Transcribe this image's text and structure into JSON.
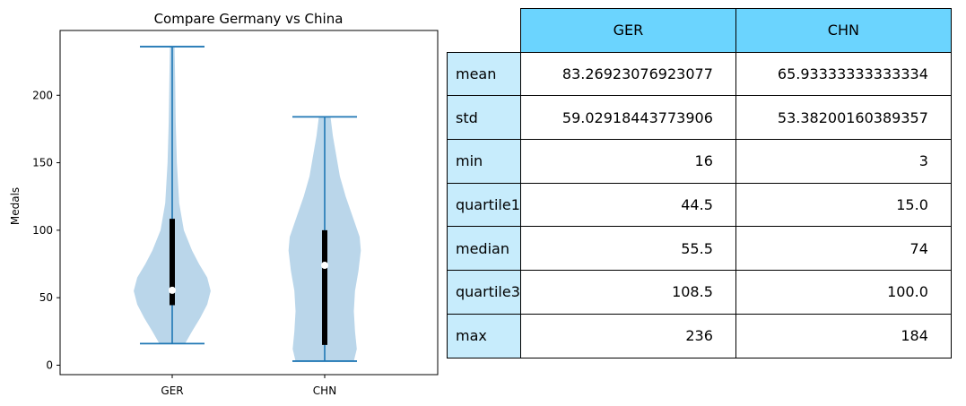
{
  "chart_data": {
    "type": "violin",
    "title": "Compare Germany vs China",
    "ylabel": "Medals",
    "xlabel": "",
    "ylim": [
      -7,
      248
    ],
    "yticks": [
      0,
      50,
      100,
      150,
      200
    ],
    "categories": [
      "GER",
      "CHN"
    ],
    "series": [
      {
        "name": "GER",
        "min": 16,
        "quartile1": 44.5,
        "median": 55.5,
        "quartile3": 108.5,
        "max": 236,
        "density": [
          [
            16,
            0.22
          ],
          [
            25,
            0.34
          ],
          [
            35,
            0.48
          ],
          [
            45,
            0.6
          ],
          [
            55,
            0.66
          ],
          [
            65,
            0.6
          ],
          [
            75,
            0.46
          ],
          [
            85,
            0.34
          ],
          [
            100,
            0.2
          ],
          [
            120,
            0.12
          ],
          [
            150,
            0.08
          ],
          [
            180,
            0.06
          ],
          [
            210,
            0.05
          ],
          [
            236,
            0.04
          ]
        ]
      },
      {
        "name": "CHN",
        "min": 3,
        "quartile1": 15.0,
        "median": 74,
        "quartile3": 100.0,
        "max": 184,
        "density": [
          [
            3,
            0.5
          ],
          [
            12,
            0.55
          ],
          [
            25,
            0.52
          ],
          [
            40,
            0.5
          ],
          [
            55,
            0.52
          ],
          [
            70,
            0.58
          ],
          [
            85,
            0.62
          ],
          [
            95,
            0.6
          ],
          [
            110,
            0.48
          ],
          [
            125,
            0.36
          ],
          [
            140,
            0.26
          ],
          [
            155,
            0.2
          ],
          [
            170,
            0.14
          ],
          [
            184,
            0.1
          ]
        ]
      }
    ],
    "grid": false,
    "colors": {
      "body": "#bad6ea",
      "line": "#1f77b4",
      "box": "#000000",
      "median_dot": "#ffffff"
    }
  },
  "table": {
    "columns": [
      "GER",
      "CHN"
    ],
    "rows": [
      {
        "label": "mean",
        "values": [
          "83.26923076923077",
          "65.93333333333334"
        ]
      },
      {
        "label": "std",
        "values": [
          "59.02918443773906",
          "53.38200160389357"
        ]
      },
      {
        "label": "min",
        "values": [
          "16",
          "3"
        ]
      },
      {
        "label": "quartile1",
        "values": [
          "44.5",
          "15.0"
        ]
      },
      {
        "label": "median",
        "values": [
          "55.5",
          "74"
        ]
      },
      {
        "label": "quartile3",
        "values": [
          "108.5",
          "100.0"
        ]
      },
      {
        "label": "max",
        "values": [
          "236",
          "184"
        ]
      }
    ],
    "colors": {
      "header": "#6bd4fe",
      "row_header": "#c7ecfc"
    }
  }
}
